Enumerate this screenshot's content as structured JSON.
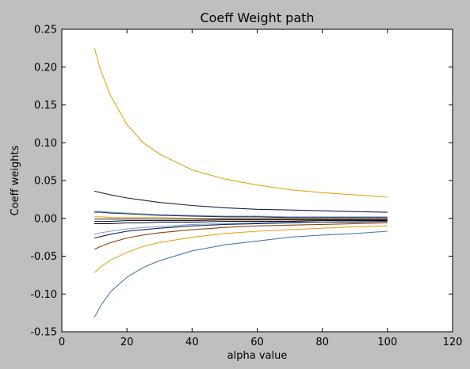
{
  "chart_data": {
    "type": "line",
    "title": "Coeff Weight path",
    "xlabel": "alpha value",
    "ylabel": "Coeff weights",
    "xlim": [
      0,
      120
    ],
    "ylim": [
      -0.15,
      0.25
    ],
    "xticks": [
      "0",
      "20",
      "40",
      "60",
      "80",
      "100",
      "120"
    ],
    "yticks": [
      "-0.15",
      "-0.10",
      "-0.05",
      "0.00",
      "0.05",
      "0.10",
      "0.15",
      "0.20",
      "0.25"
    ],
    "grid": false,
    "legend": "none",
    "x": [
      10,
      12,
      15,
      20,
      25,
      30,
      40,
      50,
      60,
      70,
      80,
      90,
      100
    ],
    "series": [
      {
        "color": "#e8a317",
        "values": [
          0.225,
          0.195,
          0.162,
          0.124,
          0.1,
          0.085,
          0.064,
          0.052,
          0.044,
          0.038,
          0.034,
          0.031,
          0.028
        ]
      },
      {
        "color": "#1f1f4f",
        "values": [
          0.036,
          0.034,
          0.031,
          0.027,
          0.024,
          0.021,
          0.017,
          0.014,
          0.012,
          0.011,
          0.01,
          0.009,
          0.008
        ]
      },
      {
        "color": "#7ba7d0",
        "values": [
          0.01,
          0.009,
          0.008,
          0.007,
          0.006,
          0.005,
          0.004,
          0.003,
          0.003,
          0.002,
          0.002,
          0.002,
          0.002
        ]
      },
      {
        "color": "#2e2e5e",
        "values": [
          0.008,
          0.008,
          0.007,
          0.006,
          0.005,
          0.004,
          0.003,
          0.002,
          0.002,
          0.001,
          0.001,
          0.001,
          0.001
        ]
      },
      {
        "color": "#e8a317",
        "values": [
          0.002,
          0.002,
          0.001,
          0.001,
          0.001,
          0.001,
          0.0,
          0.0,
          0.0,
          0.0,
          0.0,
          0.0,
          0.0
        ]
      },
      {
        "color": "#444444",
        "values": [
          -0.001,
          -0.001,
          -0.001,
          -0.001,
          -0.001,
          -0.001,
          -0.001,
          -0.001,
          -0.001,
          -0.001,
          -0.001,
          -0.001,
          -0.001
        ]
      },
      {
        "color": "#1f1f4f",
        "values": [
          -0.004,
          -0.004,
          -0.004,
          -0.003,
          -0.003,
          -0.003,
          -0.003,
          -0.002,
          -0.002,
          -0.002,
          -0.002,
          -0.002,
          -0.002
        ]
      },
      {
        "color": "#111111",
        "values": [
          -0.007,
          -0.007,
          -0.007,
          -0.006,
          -0.006,
          -0.005,
          -0.005,
          -0.004,
          -0.004,
          -0.004,
          -0.003,
          -0.003,
          -0.003
        ]
      },
      {
        "color": "#7ba7d0",
        "values": [
          -0.021,
          -0.019,
          -0.017,
          -0.014,
          -0.012,
          -0.011,
          -0.008,
          -0.007,
          -0.006,
          -0.005,
          -0.005,
          -0.004,
          -0.004
        ]
      },
      {
        "color": "#1f1f4f",
        "values": [
          -0.026,
          -0.024,
          -0.021,
          -0.017,
          -0.015,
          -0.013,
          -0.01,
          -0.008,
          -0.007,
          -0.006,
          -0.005,
          -0.005,
          -0.004
        ]
      },
      {
        "color": "#8b4513",
        "values": [
          -0.041,
          -0.037,
          -0.032,
          -0.026,
          -0.022,
          -0.019,
          -0.015,
          -0.012,
          -0.01,
          -0.009,
          -0.008,
          -0.007,
          -0.006
        ]
      },
      {
        "color": "#e8a317",
        "values": [
          -0.072,
          -0.064,
          -0.055,
          -0.045,
          -0.037,
          -0.032,
          -0.025,
          -0.02,
          -0.017,
          -0.015,
          -0.013,
          -0.011,
          -0.01
        ]
      },
      {
        "color": "#4a7fb0",
        "values": [
          -0.131,
          -0.115,
          -0.097,
          -0.078,
          -0.065,
          -0.056,
          -0.043,
          -0.035,
          -0.03,
          -0.025,
          -0.022,
          -0.02,
          -0.017
        ]
      }
    ]
  }
}
